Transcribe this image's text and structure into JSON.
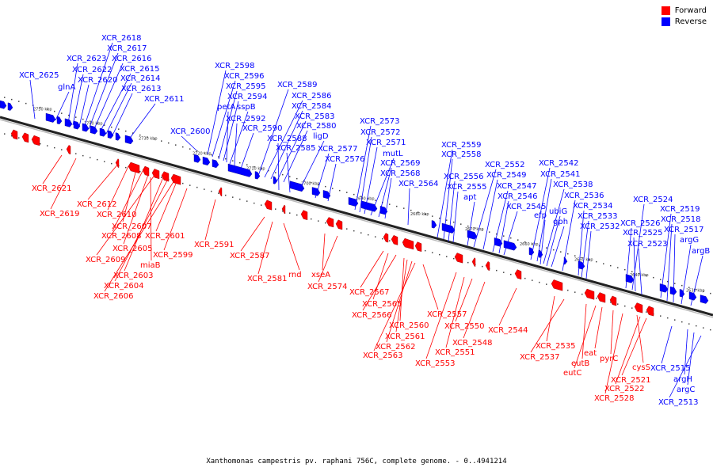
{
  "legend": {
    "forward": {
      "label": "Forward",
      "color": "#ff0000"
    },
    "reverse": {
      "label": "Reverse",
      "color": "#0000ff"
    }
  },
  "caption": "Xanthomonas campestris pv. raphani 756C, complete genome. - 0..4941214",
  "axis_ticks": [
    "2750 kbp",
    "2740 kbp",
    "2730 kbp",
    "2720 kbp",
    "2710 kbp",
    "2700 kbp",
    "2690 kbp",
    "2680 kbp",
    "2670 kbp",
    "2660 kbp",
    "2650 kbp",
    "2640 kbp",
    "2630 kbp"
  ],
  "reverse_genes": [
    "XCR_2625",
    "glnA",
    "XCR_2623",
    "XCR_2622",
    "XCR_2620",
    "XCR_2618",
    "XCR_2617",
    "XCR_2616",
    "XCR_2615",
    "XCR_2614",
    "XCR_2613",
    "XCR_2611",
    "XCR_2600",
    "XCR_2598",
    "XCR_2596",
    "XCR_2595",
    "XCR_2594",
    "petA",
    "sspB",
    "XCR_2592",
    "XCR_2590",
    "XCR_2589",
    "XCR_2586",
    "XCR_2584",
    "XCR_2583",
    "XCR_2580",
    "ligD",
    "XCR_2588",
    "XCR_2585",
    "XCR_2577",
    "XCR_2576",
    "XCR_2573",
    "XCR_2572",
    "XCR_2571",
    "mutL",
    "XCR_2569",
    "XCR_2568",
    "XCR_2564",
    "XCR_2559",
    "XCR_2558",
    "XCR_2556",
    "XCR_2555",
    "apt",
    "XCR_2552",
    "XCR_2549",
    "XCR_2547",
    "XCR_2546",
    "XCR_2545",
    "XCR_2542",
    "XCR_2541",
    "XCR_2538",
    "ubiG",
    "efp",
    "gph",
    "XCR_2536",
    "XCR_2534",
    "XCR_2533",
    "XCR_2532",
    "XCR_2524",
    "XCR_2526",
    "XCR_2525",
    "XCR_2523",
    "XCR_2519",
    "XCR_2518",
    "XCR_2517",
    "argG",
    "argB",
    "XCR_2515",
    "argH",
    "argC",
    "XCR_2513"
  ],
  "forward_genes": [
    "XCR_2621",
    "XCR_2619",
    "XCR_2612",
    "XCR_2610",
    "XCR_2607",
    "XCR_2608",
    "XCR_2605",
    "XCR_2609",
    "XCR_2603",
    "XCR_2604",
    "XCR_2606",
    "miaB",
    "XCR_2601",
    "XCR_2599",
    "XCR_2591",
    "XCR_2587",
    "XCR_2581",
    "rnd",
    "xseA",
    "XCR_2574",
    "XCR_2567",
    "XCR_2565",
    "XCR_2566",
    "XCR_2560",
    "XCR_2561",
    "XCR_2562",
    "XCR_2563",
    "XCR_2557",
    "XCR_2553",
    "XCR_2551",
    "XCR_2550",
    "XCR_2548",
    "XCR_2544",
    "XCR_2535",
    "XCR_2537",
    "eutB",
    "eutC",
    "eat",
    "pyrC",
    "cysS",
    "XCR_2521",
    "XCR_2522",
    "XCR_2528"
  ]
}
